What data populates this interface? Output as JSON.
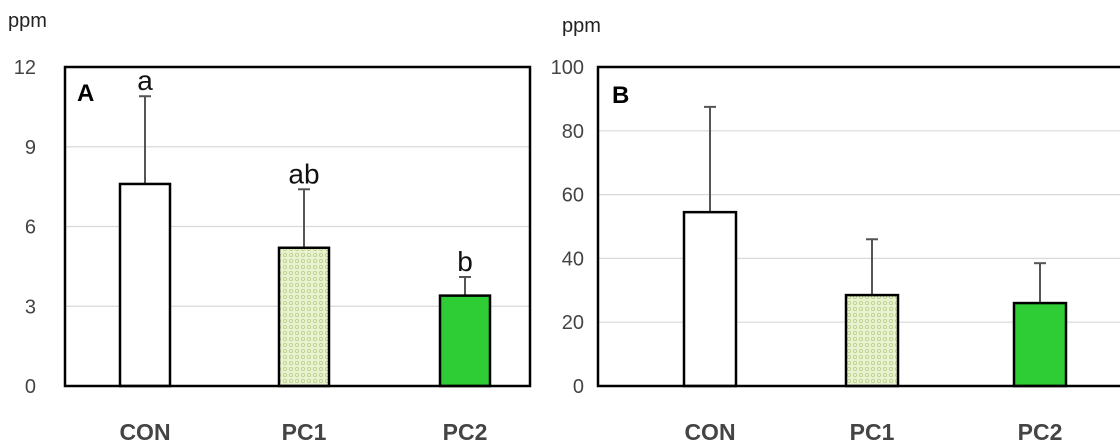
{
  "chart_data": [
    {
      "type": "bar",
      "panel_label": "A",
      "ylabel": "ppm",
      "ylim": [
        0,
        12
      ],
      "yticks": [
        0,
        3,
        6,
        9,
        12
      ],
      "grid": true,
      "categories": [
        "CON",
        "PC1",
        "PC2"
      ],
      "values": [
        7.6,
        5.2,
        3.4
      ],
      "errors": [
        3.3,
        2.2,
        0.7
      ],
      "annotations": [
        "a",
        "ab",
        "b"
      ],
      "bar_fills": [
        "#ffffff",
        "#e3efc6",
        "#2ecc35"
      ]
    },
    {
      "type": "bar",
      "panel_label": "B",
      "ylabel": "ppm",
      "ylim": [
        0,
        100
      ],
      "yticks": [
        0,
        20,
        40,
        60,
        80,
        100
      ],
      "grid": true,
      "categories": [
        "CON",
        "PC1",
        "PC2"
      ],
      "values": [
        54.5,
        28.5,
        26.0
      ],
      "errors": [
        33.0,
        17.5,
        12.5
      ],
      "annotations": [
        "",
        "",
        ""
      ],
      "bar_fills": [
        "#ffffff",
        "#e3efc6",
        "#2ecc35"
      ]
    }
  ]
}
